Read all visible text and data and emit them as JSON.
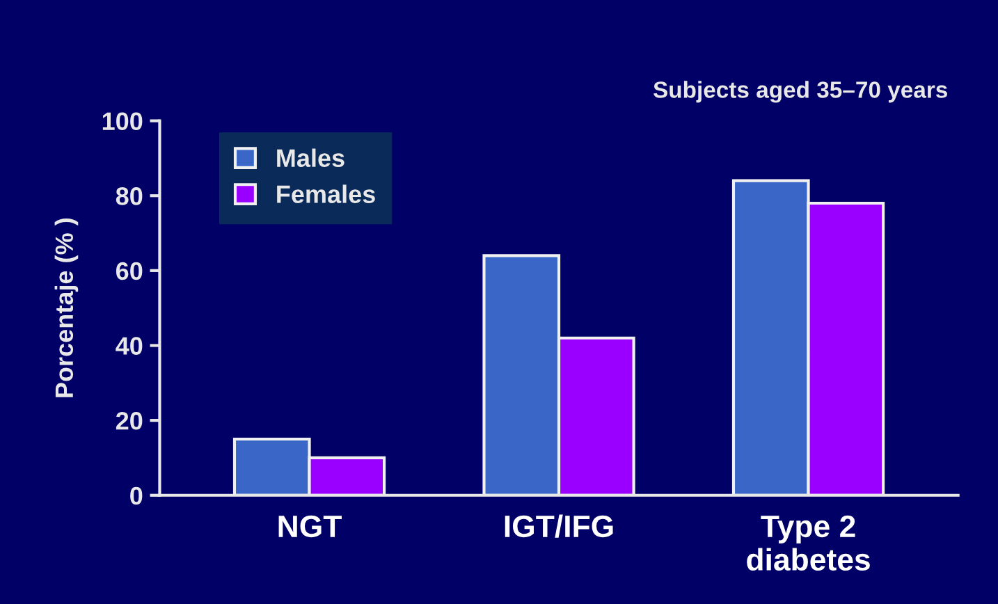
{
  "chart_data": {
    "type": "bar",
    "ylabel": "Porcentaje (% )",
    "annotations": [
      "Subjects aged 35–70 years"
    ],
    "categories": [
      "NGT",
      "IGT/IFG",
      "Type 2\ndiabetes"
    ],
    "series": [
      {
        "name": "Males",
        "color": "#3a66c8",
        "values": [
          15,
          64,
          84
        ]
      },
      {
        "name": "Females",
        "color": "#9900ff",
        "values": [
          10,
          42,
          78
        ]
      }
    ],
    "ylim": [
      0,
      100
    ],
    "yticks": [
      0,
      20,
      40,
      60,
      80,
      100
    ],
    "grid": false,
    "legend": "top left"
  }
}
